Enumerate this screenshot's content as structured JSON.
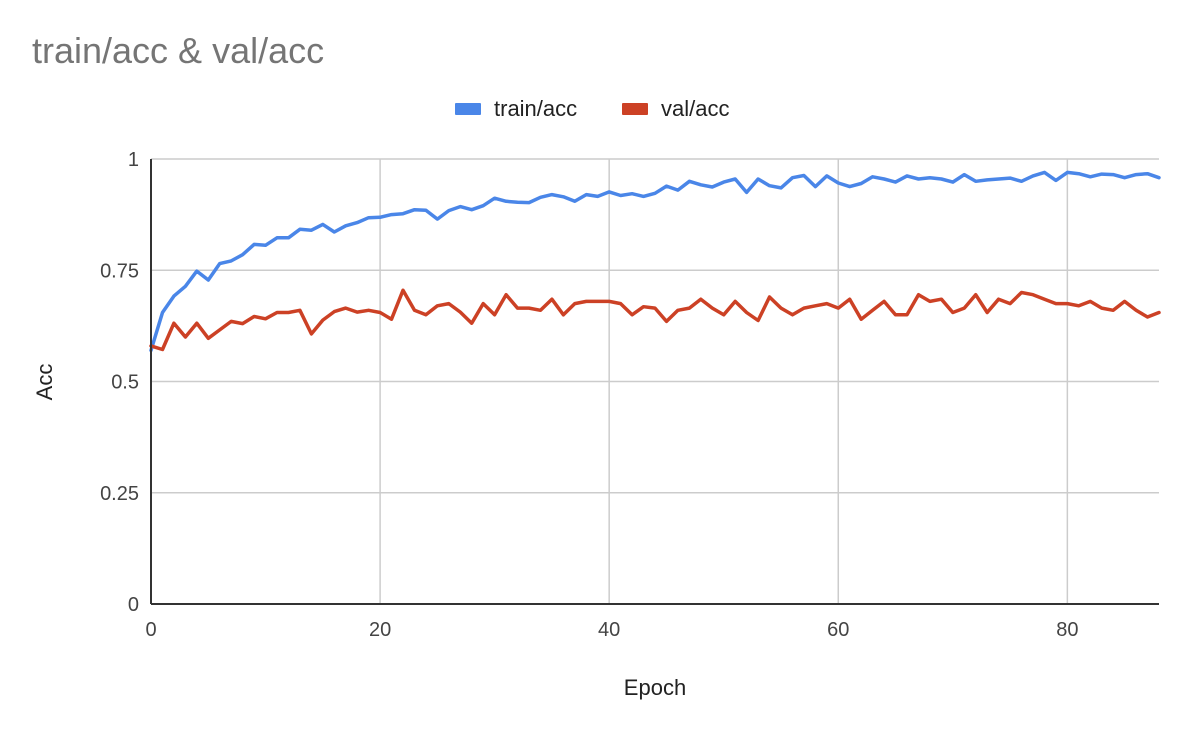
{
  "chart_data": {
    "type": "line",
    "title": "train/acc & val/acc",
    "xlabel": "Epoch",
    "ylabel": "Acc",
    "xlim": [
      0,
      88
    ],
    "ylim": [
      0,
      1
    ],
    "x_ticks": [
      0,
      20,
      40,
      60,
      80
    ],
    "y_ticks": [
      0,
      0.25,
      0.5,
      0.75,
      1
    ],
    "y_tick_labels": [
      "0",
      "0.25",
      "0.5",
      "0.75",
      "1"
    ],
    "grid": true,
    "legend_position": "top",
    "series": [
      {
        "name": "train/acc",
        "color": "#4a86e8",
        "values": [
          0.57,
          0.655,
          0.692,
          0.714,
          0.748,
          0.728,
          0.765,
          0.771,
          0.785,
          0.808,
          0.806,
          0.823,
          0.823,
          0.842,
          0.84,
          0.853,
          0.836,
          0.85,
          0.857,
          0.868,
          0.869,
          0.875,
          0.877,
          0.886,
          0.885,
          0.865,
          0.884,
          0.893,
          0.886,
          0.895,
          0.912,
          0.905,
          0.903,
          0.902,
          0.914,
          0.92,
          0.915,
          0.905,
          0.92,
          0.916,
          0.926,
          0.918,
          0.922,
          0.916,
          0.923,
          0.939,
          0.93,
          0.95,
          0.942,
          0.937,
          0.948,
          0.955,
          0.925,
          0.955,
          0.94,
          0.935,
          0.958,
          0.963,
          0.938,
          0.962,
          0.946,
          0.938,
          0.945,
          0.96,
          0.955,
          0.948,
          0.962,
          0.955,
          0.958,
          0.955,
          0.948,
          0.965,
          0.95,
          0.953,
          0.955,
          0.957,
          0.95,
          0.962,
          0.97,
          0.952,
          0.97,
          0.967,
          0.96,
          0.966,
          0.965,
          0.958,
          0.965,
          0.967,
          0.958
        ]
      },
      {
        "name": "val/acc",
        "color": "#cc4125",
        "values": [
          0.58,
          0.572,
          0.631,
          0.6,
          0.631,
          0.597,
          0.616,
          0.635,
          0.63,
          0.646,
          0.641,
          0.655,
          0.655,
          0.66,
          0.607,
          0.638,
          0.657,
          0.665,
          0.656,
          0.66,
          0.655,
          0.64,
          0.705,
          0.66,
          0.65,
          0.67,
          0.675,
          0.656,
          0.631,
          0.675,
          0.65,
          0.695,
          0.665,
          0.665,
          0.66,
          0.685,
          0.65,
          0.675,
          0.68,
          0.68,
          0.68,
          0.675,
          0.65,
          0.668,
          0.665,
          0.635,
          0.66,
          0.665,
          0.685,
          0.665,
          0.65,
          0.68,
          0.655,
          0.637,
          0.69,
          0.665,
          0.65,
          0.665,
          0.67,
          0.675,
          0.665,
          0.685,
          0.64,
          0.66,
          0.68,
          0.65,
          0.65,
          0.695,
          0.68,
          0.685,
          0.655,
          0.665,
          0.695,
          0.655,
          0.685,
          0.675,
          0.7,
          0.695,
          0.685,
          0.675,
          0.675,
          0.67,
          0.68,
          0.665,
          0.66,
          0.68,
          0.66,
          0.645,
          0.655
        ]
      }
    ]
  }
}
